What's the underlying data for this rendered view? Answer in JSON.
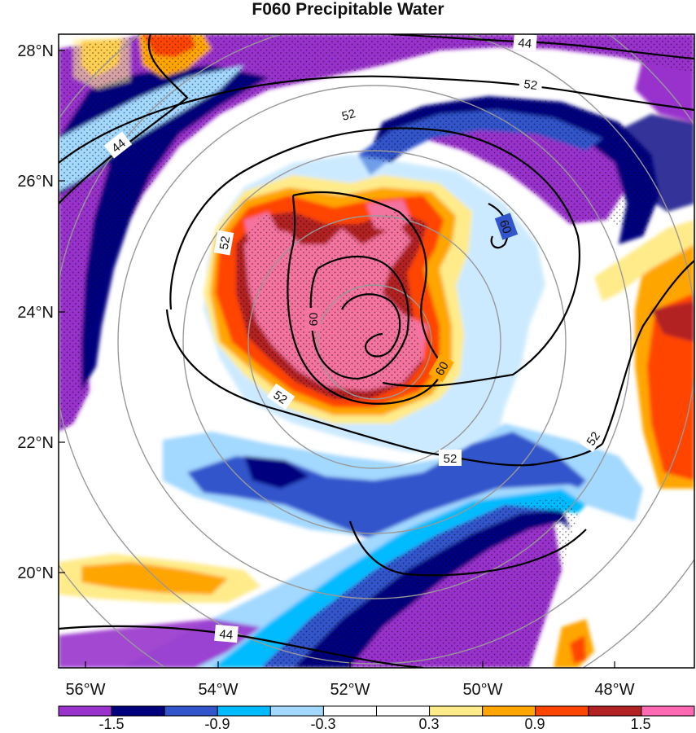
{
  "title": "F060 Precipitable Water",
  "latitude_labels": [
    "28°N",
    "26°N",
    "24°N",
    "22°N",
    "20°N"
  ],
  "longitude_labels": [
    "56°W",
    "54°W",
    "52°W",
    "50°W",
    "48°W"
  ],
  "colorbar": {
    "labels": [
      "-1.5",
      "-0.9",
      "-0.3",
      "0.3",
      "0.9",
      "1.5"
    ],
    "colors": [
      "#9933cc",
      "#00007f",
      "#3355cc",
      "#00bbff",
      "#a3d8ff",
      "#ffffff",
      "#ffffff",
      "#ffeb8a",
      "#ffa500",
      "#ff4500",
      "#b22222",
      "#ff69b4"
    ]
  },
  "contours": [
    {
      "id": "c44a",
      "label": "44"
    },
    {
      "id": "c44b",
      "label": "44"
    },
    {
      "id": "c44c",
      "label": "44"
    },
    {
      "id": "c52a",
      "label": "52"
    },
    {
      "id": "c52b",
      "label": "52"
    },
    {
      "id": "c52c",
      "label": "52"
    },
    {
      "id": "c52d",
      "label": "52"
    },
    {
      "id": "c52e",
      "label": "52"
    },
    {
      "id": "c60a",
      "label": "60"
    },
    {
      "id": "c60b",
      "label": "60"
    },
    {
      "id": "c60c",
      "label": "60"
    }
  ],
  "colors": {
    "purple": "#9933cc",
    "navy": "#00007f",
    "blue": "#3355cc",
    "cyan": "#00bbff",
    "lightblue": "#a3d8ff",
    "lightyellow": "#ffeb8a",
    "orange": "#ffa500",
    "red": "#ff4500",
    "darkred": "#b22222",
    "pink": "#f4739f",
    "ring": "#999999",
    "contour": "#000000"
  }
}
